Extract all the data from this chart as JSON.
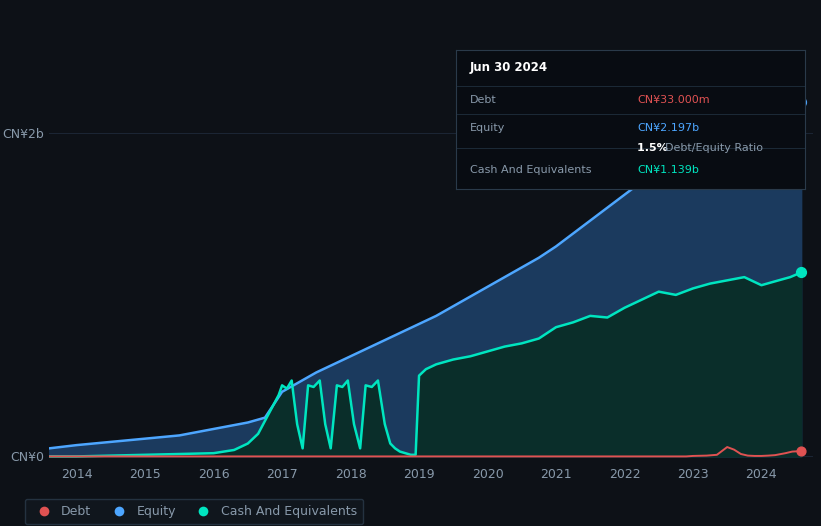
{
  "background_color": "#0d1117",
  "plot_bg_color": "#111827",
  "tooltip": {
    "date": "Jun 30 2024",
    "debt_label": "Debt",
    "debt_value": "CN¥33.000m",
    "equity_label": "Equity",
    "equity_value": "CN¥2.197b",
    "ratio_value": "1.5%",
    "ratio_label": "Debt/Equity Ratio",
    "cash_label": "Cash And Equivalents",
    "cash_value": "CN¥1.139b"
  },
  "x_ticks": [
    2014,
    2015,
    2016,
    2017,
    2018,
    2019,
    2020,
    2021,
    2022,
    2023,
    2024
  ],
  "y_max": 2.5,
  "y_label_0": "CN¥0",
  "y_label_2b": "CN¥2b",
  "equity_color": "#4da6ff",
  "equity_fill": "#1b3a5e",
  "cash_color": "#00e5c0",
  "cash_fill": "#0a2e2a",
  "debt_color": "#e05252",
  "legend_items": [
    "Debt",
    "Equity",
    "Cash And Equivalents"
  ],
  "legend_colors": [
    "#e05252",
    "#4da6ff",
    "#00e5c0"
  ],
  "grid_color": "#1e2a3a",
  "axis_label_color": "#8899aa",
  "tooltip_bg": "#080c12",
  "tooltip_border": "#2a3a4a",
  "xlim_left": 2013.6,
  "xlim_right": 2024.75
}
